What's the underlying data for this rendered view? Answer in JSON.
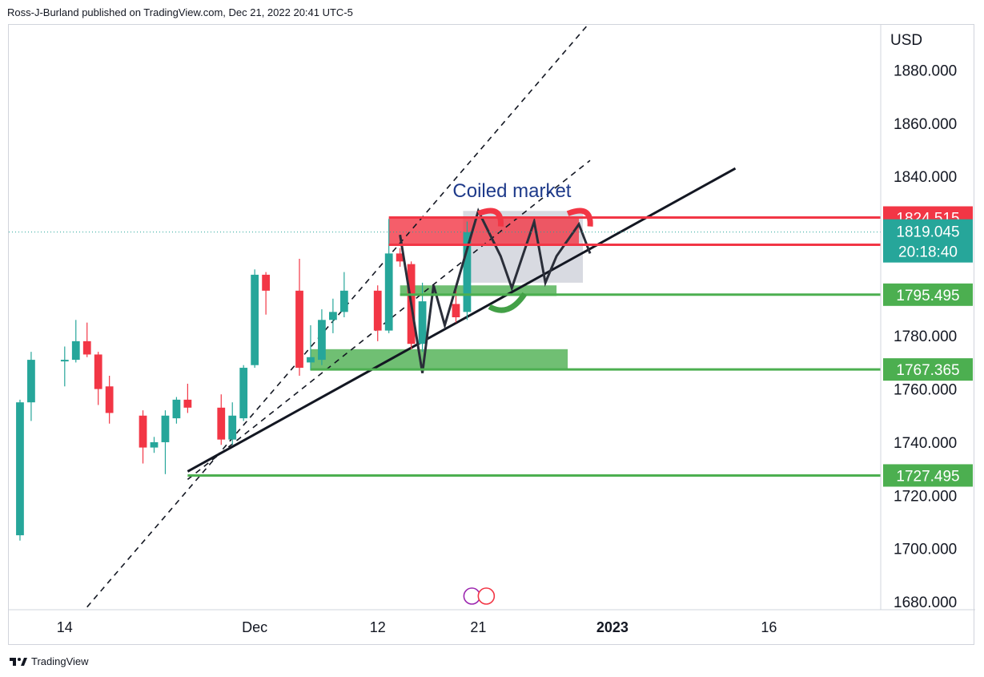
{
  "header": {
    "publisher_line": "Ross-J-Burland published on TradingView.com, Dec 21, 2022 20:41 UTC-5"
  },
  "footer": {
    "brand": "TradingView",
    "logo_icon": "tradingview-logo-icon"
  },
  "chart_data": {
    "type": "candlestick",
    "currency": "USD",
    "y_axis_ticks": [
      1880,
      1860,
      1840,
      1780,
      1760,
      1740,
      1720,
      1700,
      1680
    ],
    "y_axis_tick_labels": [
      "1880.000",
      "1860.000",
      "1840.000",
      "1780.000",
      "1760.000",
      "1740.000",
      "1720.000",
      "1700.000",
      "1680.000"
    ],
    "ylim": [
      1677,
      1897
    ],
    "x_axis_labels": [
      {
        "label": "14",
        "date": "2022-11-14"
      },
      {
        "label": "Dec",
        "date": "2022-12-01"
      },
      {
        "label": "12",
        "date": "2022-12-12"
      },
      {
        "label": "21",
        "date": "2022-12-21"
      },
      {
        "label": "2023",
        "date": "2023-01-02"
      },
      {
        "label": "16",
        "date": "2023-01-16"
      }
    ],
    "x_range": [
      "2022-11-09",
      "2023-01-26"
    ],
    "colors": {
      "up": "#26a69a",
      "down": "#f23645",
      "green_zone": "#4caf50",
      "red_zone": "#f23645",
      "grey_box": "#d1d4dc",
      "trend_black": "#131722",
      "annotation_text": "#1e3a8a"
    },
    "candles": [
      {
        "date": "2022-11-10",
        "open": 1705,
        "high": 1756,
        "low": 1703,
        "close": 1755
      },
      {
        "date": "2022-11-11",
        "open": 1755,
        "high": 1774,
        "low": 1748,
        "close": 1771
      },
      {
        "date": "2022-11-14",
        "open": 1771,
        "high": 1776,
        "low": 1761,
        "close": 1771
      },
      {
        "date": "2022-11-15",
        "open": 1771,
        "high": 1786,
        "low": 1770,
        "close": 1778
      },
      {
        "date": "2022-11-16",
        "open": 1778,
        "high": 1785,
        "low": 1772,
        "close": 1773
      },
      {
        "date": "2022-11-17",
        "open": 1773,
        "high": 1774,
        "low": 1754,
        "close": 1760
      },
      {
        "date": "2022-11-18",
        "open": 1761,
        "high": 1765,
        "low": 1747,
        "close": 1751
      },
      {
        "date": "2022-11-21",
        "open": 1750,
        "high": 1752,
        "low": 1732,
        "close": 1738
      },
      {
        "date": "2022-11-22",
        "open": 1738,
        "high": 1742,
        "low": 1736,
        "close": 1740
      },
      {
        "date": "2022-11-23",
        "open": 1740,
        "high": 1752,
        "low": 1728,
        "close": 1750
      },
      {
        "date": "2022-11-24",
        "open": 1749,
        "high": 1757,
        "low": 1747,
        "close": 1756
      },
      {
        "date": "2022-11-25",
        "open": 1756,
        "high": 1762,
        "low": 1751,
        "close": 1753
      },
      {
        "date": "2022-11-28",
        "open": 1753,
        "high": 1758,
        "low": 1739,
        "close": 1741
      },
      {
        "date": "2022-11-29",
        "open": 1741,
        "high": 1755,
        "low": 1739,
        "close": 1750
      },
      {
        "date": "2022-11-30",
        "open": 1749,
        "high": 1769,
        "low": 1748,
        "close": 1768
      },
      {
        "date": "2022-12-01",
        "open": 1769,
        "high": 1805,
        "low": 1768,
        "close": 1803
      },
      {
        "date": "2022-12-02",
        "open": 1803,
        "high": 1804,
        "low": 1788,
        "close": 1797
      },
      {
        "date": "2022-12-05",
        "open": 1797,
        "high": 1809,
        "low": 1765,
        "close": 1768
      },
      {
        "date": "2022-12-06",
        "open": 1770,
        "high": 1784,
        "low": 1767,
        "close": 1772
      },
      {
        "date": "2022-12-07",
        "open": 1771,
        "high": 1790,
        "low": 1769,
        "close": 1786
      },
      {
        "date": "2022-12-08",
        "open": 1786,
        "high": 1794,
        "low": 1781,
        "close": 1789
      },
      {
        "date": "2022-12-09",
        "open": 1789,
        "high": 1804,
        "low": 1787,
        "close": 1797
      },
      {
        "date": "2022-12-12",
        "open": 1797,
        "high": 1799,
        "low": 1778,
        "close": 1782
      },
      {
        "date": "2022-12-13",
        "open": 1782,
        "high": 1824,
        "low": 1781,
        "close": 1811
      },
      {
        "date": "2022-12-14",
        "open": 1811,
        "high": 1813,
        "low": 1806,
        "close": 1808
      },
      {
        "date": "2022-12-15",
        "open": 1807,
        "high": 1808,
        "low": 1775,
        "close": 1777
      },
      {
        "date": "2022-12-16",
        "open": 1777,
        "high": 1800,
        "low": 1774,
        "close": 1793
      },
      {
        "date": "2022-12-19",
        "open": 1792,
        "high": 1798,
        "low": 1785,
        "close": 1787
      },
      {
        "date": "2022-12-20",
        "open": 1789,
        "high": 1823,
        "low": 1786,
        "close": 1819
      }
    ],
    "horizontal_levels": [
      {
        "value": 1824.515,
        "label": "1824.515",
        "color": "#f23645"
      },
      {
        "value": 1814.265,
        "label": "1814.265",
        "color": "#f23645"
      },
      {
        "value": 1795.495,
        "label": "1795.495",
        "color": "#4caf50"
      },
      {
        "value": 1767.365,
        "label": "1767.365",
        "color": "#4caf50"
      },
      {
        "value": 1727.495,
        "label": "1727.495",
        "color": "#4caf50"
      }
    ],
    "current_price": {
      "value": 1819.045,
      "label": "1819.045",
      "countdown": "20:18:40",
      "color": "#26a69a"
    },
    "zones": [
      {
        "type": "supply",
        "color": "#f23645",
        "y_from": 1814.265,
        "y_to": 1824.515,
        "x_from": "2022-12-13",
        "x_to": "2022-12-30"
      },
      {
        "type": "demand",
        "color": "#4caf50",
        "y_from": 1795,
        "y_to": 1799,
        "x_from": "2022-12-14",
        "x_to": "2022-12-28"
      },
      {
        "type": "demand",
        "color": "#4caf50",
        "y_from": 1767.365,
        "y_to": 1775,
        "x_from": "2022-12-06",
        "x_to": "2022-12-29"
      }
    ],
    "annotation": {
      "text": "Coiled market",
      "x": "2022-12-20",
      "y": 1834
    },
    "consolidation_box": {
      "x_from": "2022-12-20",
      "x_to": "2022-12-30",
      "y_from": 1800,
      "y_to": 1827
    },
    "trendlines": [
      {
        "style": "solid",
        "from": {
          "x": "2022-11-25",
          "y": 1729
        },
        "to": {
          "x": "2023-01-13",
          "y": 1843
        }
      },
      {
        "style": "dashed",
        "from": {
          "x": "2022-11-16",
          "y": 1678
        },
        "to": {
          "x": "2022-12-31",
          "y": 1898
        }
      },
      {
        "style": "dashed",
        "from": {
          "x": "2022-11-25",
          "y": 1726
        },
        "to": {
          "x": "2022-12-31",
          "y": 1846
        }
      }
    ],
    "zigzag": [
      {
        "x": "2022-12-14",
        "y": 1818
      },
      {
        "x": "2022-12-16",
        "y": 1766
      },
      {
        "x": "2022-12-17",
        "y": 1799
      },
      {
        "x": "2022-12-18",
        "y": 1784
      },
      {
        "x": "2022-12-21",
        "y": 1827
      },
      {
        "x": "2022-12-23",
        "y": 1810
      },
      {
        "x": "2022-12-24",
        "y": 1798
      },
      {
        "x": "2022-12-26",
        "y": 1823
      },
      {
        "x": "2022-12-27",
        "y": 1800
      },
      {
        "x": "2022-12-28",
        "y": 1810
      },
      {
        "x": "2022-12-30",
        "y": 1822
      },
      {
        "x": "2022-12-31",
        "y": 1811
      }
    ],
    "event_icons": [
      {
        "date": "2022-12-21",
        "name": "lightning-event-icon",
        "color": "#9c27b0"
      },
      {
        "date": "2022-12-22",
        "name": "us-flag-event-icon",
        "color": "#f23645"
      }
    ]
  }
}
